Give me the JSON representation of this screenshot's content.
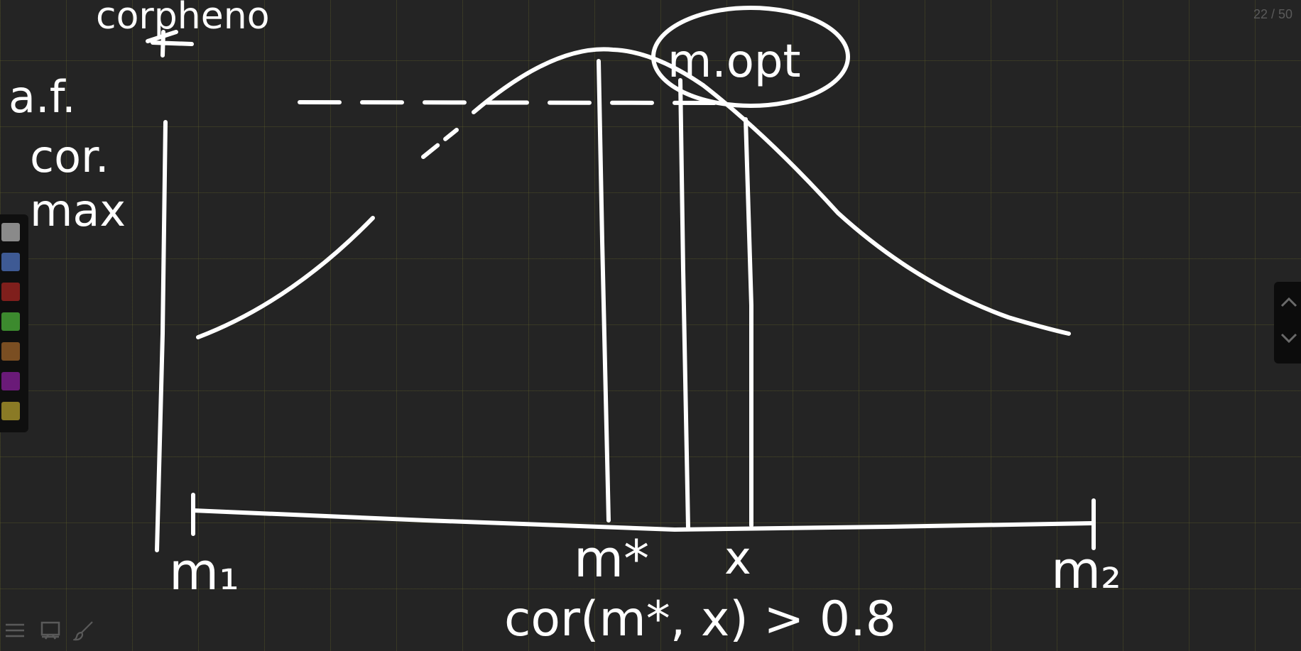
{
  "board": {
    "page_counter": "22 / 50",
    "background_color": "#242424",
    "grid_color": "#4a4a22"
  },
  "palette": {
    "swatches": [
      {
        "name": "gray",
        "color": "#8a8a8a"
      },
      {
        "name": "blue",
        "color": "#3e5a94"
      },
      {
        "name": "red",
        "color": "#7f1f1c"
      },
      {
        "name": "green",
        "color": "#3c8a2e"
      },
      {
        "name": "brown",
        "color": "#7a4e22"
      },
      {
        "name": "purple",
        "color": "#6a1a78"
      },
      {
        "name": "olive",
        "color": "#8a7a25"
      }
    ]
  },
  "navigation": {
    "up_icon": "chevron-up-icon",
    "down_icon": "chevron-down-icon"
  },
  "toolbar": {
    "menu_icon": "menu-icon",
    "presentation_icon": "presentation-icon",
    "brush_icon": "brush-icon"
  },
  "handwriting": {
    "top_label": "corpheno",
    "y_label_line1": "a.f.",
    "y_label_line2": "cor.",
    "y_label_line3": "max",
    "ellipse_label": "m.opt",
    "x_start_label": "m₁",
    "x_mid_label": "m*",
    "x_label": "x",
    "x_end_label": "m₂",
    "bottom_formula": "cor(m*, x) > 0.8"
  }
}
